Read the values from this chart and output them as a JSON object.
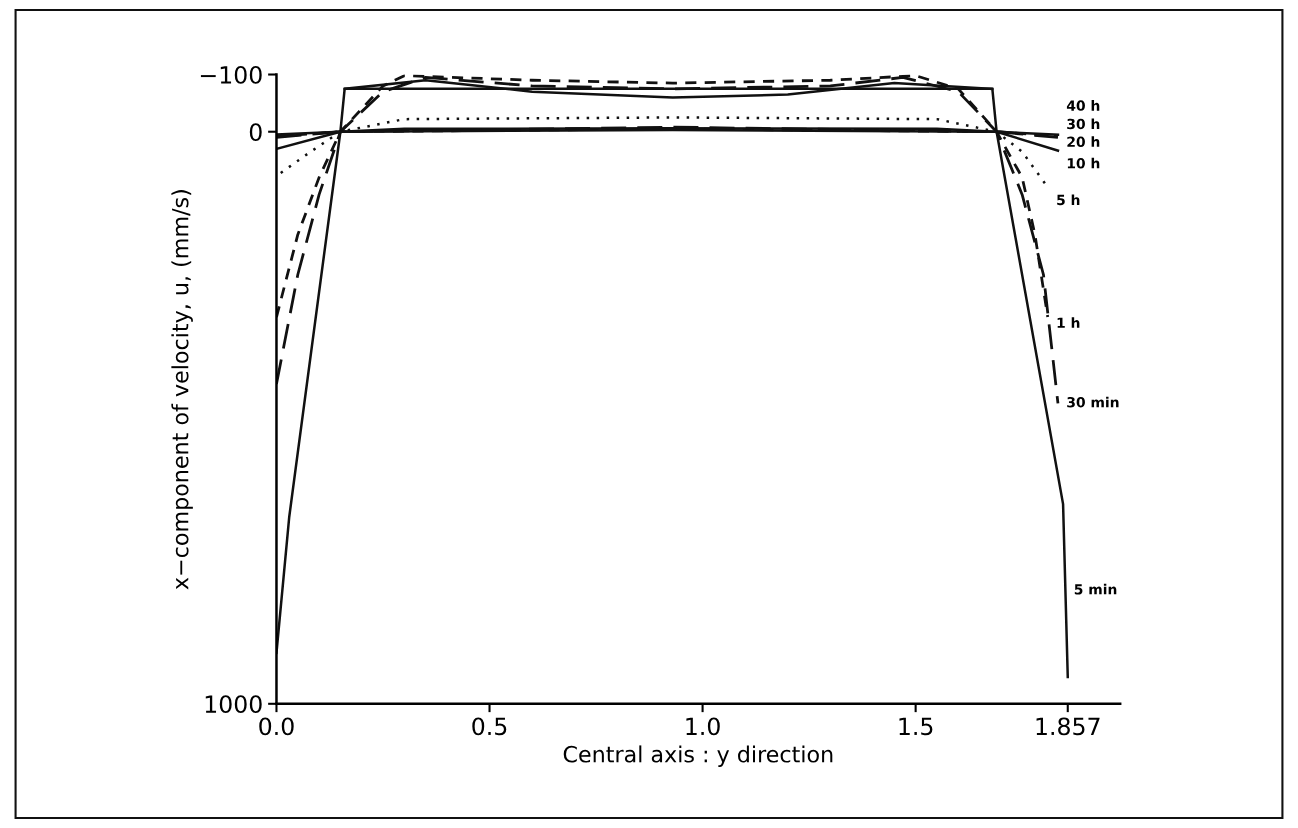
{
  "chart_data": {
    "type": "line",
    "xlabel": "Central axis : y direction",
    "ylabel": "x−component of velocity, u, (mm/s)",
    "xlim": [
      0,
      1.98
    ],
    "ylim": [
      1000,
      -100
    ],
    "xticks": [
      {
        "value": 0,
        "label": "0.0"
      },
      0.5,
      {
        "value": 1.0,
        "label": "1.0"
      },
      1.5,
      1.857
    ],
    "yticks": [
      {
        "value": -100,
        "label": "−100"
      },
      0,
      1000
    ],
    "grid": false,
    "legend": false,
    "color": "#111111",
    "series": [
      {
        "name": "5 min",
        "line_style": "solid",
        "x": [
          0,
          0.03,
          0.15,
          0.16,
          1.68,
          1.69,
          1.846,
          1.857
        ],
        "values": [
          911,
          673,
          0,
          -75,
          -75,
          0,
          651,
          953
        ]
      },
      {
        "line_style": "solid",
        "x": [
          0.16,
          0.35,
          0.6,
          0.93,
          1.2,
          1.45,
          1.68
        ],
        "values": [
          -75,
          -90,
          -70,
          -60,
          -65,
          -85,
          -75
        ]
      },
      {
        "name": "30 min",
        "line_style": "longdash",
        "x": [
          0,
          0.05,
          0.1,
          0.15,
          0.25,
          0.35,
          0.6,
          0.93,
          1.3,
          1.47,
          1.6,
          1.69,
          1.75,
          1.8,
          1.834
        ],
        "values": [
          441,
          250,
          110,
          0,
          -70,
          -95,
          -80,
          -75,
          -80,
          -95,
          -70,
          0,
          110,
          250,
          475
        ]
      },
      {
        "name": "1 h",
        "line_style": "dashed",
        "x": [
          0,
          0.05,
          0.1,
          0.15,
          0.25,
          0.3,
          0.6,
          0.93,
          1.3,
          1.5,
          1.6,
          1.69,
          1.75,
          1.78,
          1.81
        ],
        "values": [
          324,
          180,
          80,
          0,
          -80,
          -98,
          -90,
          -85,
          -90,
          -98,
          -75,
          0,
          80,
          180,
          324
        ]
      },
      {
        "name": "5 h",
        "line_style": "dotted",
        "x": [
          0.01,
          0.08,
          0.15,
          0.3,
          0.93,
          1.55,
          1.69,
          1.75,
          1.81
        ],
        "values": [
          72,
          35,
          0,
          -22,
          -25,
          -22,
          0,
          35,
          97
        ]
      },
      {
        "name": "10 h",
        "line_style": "solid",
        "x": [
          0,
          0.15,
          0.3,
          0.93,
          1.55,
          1.69,
          1.834
        ],
        "values": [
          30,
          0,
          -5,
          -6,
          -5,
          0,
          33
        ]
      },
      {
        "name": "20 h",
        "line_style": "longdash",
        "x": [
          0,
          0.15,
          0.93,
          1.69,
          1.834
        ],
        "values": [
          10,
          0,
          -8,
          0,
          10
        ]
      },
      {
        "name": "30 h",
        "line_style": "dashed",
        "x": [
          0,
          0.15,
          0.93,
          1.69,
          1.834
        ],
        "values": [
          8,
          0,
          -5,
          0,
          8
        ]
      },
      {
        "name": "40 h",
        "line_style": "solid",
        "x": [
          0,
          0.15,
          0.93,
          1.69,
          1.834
        ],
        "values": [
          5,
          0,
          -3,
          0,
          5
        ]
      }
    ]
  }
}
